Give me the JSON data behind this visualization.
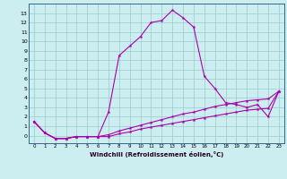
{
  "x": [
    0,
    1,
    2,
    3,
    4,
    5,
    6,
    7,
    8,
    9,
    10,
    11,
    12,
    13,
    14,
    15,
    16,
    17,
    18,
    19,
    20,
    21,
    22,
    23
  ],
  "line1": [
    1.5,
    0.3,
    -0.3,
    -0.3,
    -0.1,
    -0.1,
    -0.1,
    2.5,
    8.5,
    9.5,
    10.5,
    12.0,
    12.2,
    13.3,
    12.5,
    11.5,
    6.3,
    5.0,
    3.5,
    3.3,
    3.0,
    3.3,
    2.0,
    4.7
  ],
  "line2": [
    1.5,
    0.3,
    -0.3,
    -0.3,
    -0.1,
    -0.1,
    -0.1,
    0.1,
    0.5,
    0.8,
    1.1,
    1.4,
    1.7,
    2.0,
    2.3,
    2.5,
    2.8,
    3.1,
    3.3,
    3.5,
    3.7,
    3.8,
    3.9,
    4.7
  ],
  "line3": [
    1.5,
    0.3,
    -0.3,
    -0.3,
    -0.1,
    -0.1,
    -0.1,
    -0.1,
    0.2,
    0.4,
    0.7,
    0.9,
    1.1,
    1.3,
    1.5,
    1.7,
    1.9,
    2.1,
    2.3,
    2.5,
    2.7,
    2.8,
    2.9,
    4.7
  ],
  "bg_color": "#cceef0",
  "line_color": "#aa00aa",
  "grid_color": "#99cccc",
  "xlabel": "Windchill (Refroidissement éolien,°C)",
  "ylim": [
    -0.8,
    14.0
  ],
  "xlim": [
    -0.5,
    23.5
  ],
  "yticks": [
    0,
    1,
    2,
    3,
    4,
    5,
    6,
    7,
    8,
    9,
    10,
    11,
    12,
    13
  ],
  "xticks": [
    0,
    1,
    2,
    3,
    4,
    5,
    6,
    7,
    8,
    9,
    10,
    11,
    12,
    13,
    14,
    15,
    16,
    17,
    18,
    19,
    20,
    21,
    22,
    23
  ]
}
